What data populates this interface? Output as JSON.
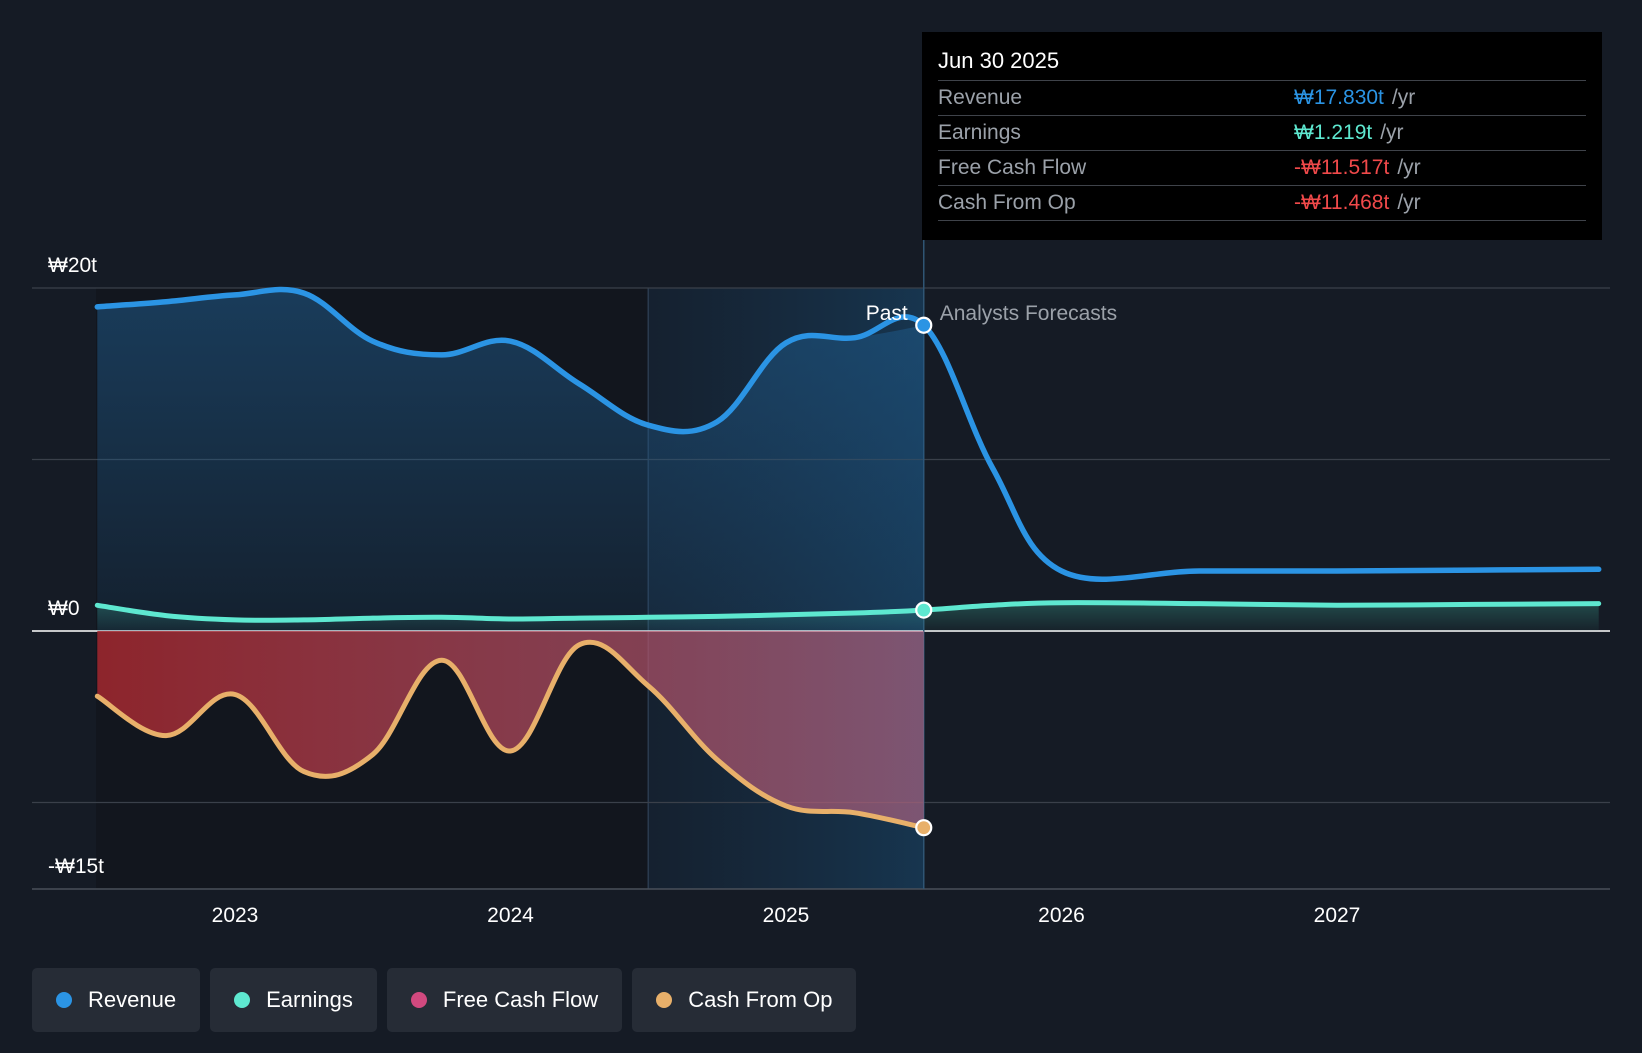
{
  "colors": {
    "background": "#151b25",
    "revenue": "#2b94e4",
    "earnings": "#5ee8d0",
    "free_cash_flow": "#d1497f",
    "cash_from_op": "#e8b06a",
    "negative": "#f0494a",
    "grid": "#3a404a"
  },
  "chart_data": {
    "type": "line",
    "title": "",
    "currency": "₩",
    "unit": "trillion KRW",
    "x_range": [
      2022.5,
      2027.95
    ],
    "ylim": [
      -15,
      20
    ],
    "y_tick_labels": [
      {
        "value": 20,
        "label": "₩20t"
      },
      {
        "value": 0,
        "label": "₩0"
      },
      {
        "value": -15,
        "label": "-₩15t"
      }
    ],
    "y_gridlines": [
      20,
      10,
      0,
      -10
    ],
    "x_ticks": [
      {
        "value": 2023,
        "label": "2023"
      },
      {
        "value": 2024,
        "label": "2024"
      },
      {
        "value": 2025,
        "label": "2025"
      },
      {
        "value": 2026,
        "label": "2026"
      },
      {
        "value": 2027,
        "label": "2027"
      }
    ],
    "past_cutoff": 2025.5,
    "shaded_region_start": 2024.5,
    "past_label": "Past",
    "forecast_label": "Analysts Forecasts",
    "series": [
      {
        "name": "Revenue",
        "key": "revenue",
        "x": [
          2022.5,
          2022.75,
          2023.0,
          2023.25,
          2023.5,
          2023.75,
          2024.0,
          2024.25,
          2024.5,
          2024.75,
          2025.0,
          2025.25,
          2025.5,
          2025.75,
          2026.0,
          2026.5,
          2027.0,
          2027.5,
          2027.95
        ],
        "y": [
          18.9,
          19.2,
          19.6,
          19.7,
          16.9,
          16.1,
          16.9,
          14.4,
          12.0,
          12.2,
          16.8,
          17.1,
          17.83,
          9.5,
          3.5,
          3.5,
          3.5,
          3.55,
          3.6
        ]
      },
      {
        "name": "Earnings",
        "key": "earnings",
        "x": [
          2022.5,
          2022.75,
          2023.0,
          2023.25,
          2023.5,
          2023.75,
          2024.0,
          2024.25,
          2024.5,
          2024.75,
          2025.0,
          2025.25,
          2025.5,
          2025.75,
          2026.0,
          2026.5,
          2027.0,
          2027.5,
          2027.95
        ],
        "y": [
          1.5,
          0.9,
          0.65,
          0.65,
          0.75,
          0.8,
          0.7,
          0.75,
          0.8,
          0.85,
          0.95,
          1.05,
          1.219,
          1.5,
          1.65,
          1.6,
          1.5,
          1.55,
          1.6
        ]
      },
      {
        "name": "Free Cash Flow",
        "key": "free_cash_flow",
        "x": [],
        "y": []
      },
      {
        "name": "Cash From Op",
        "key": "cash_from_op",
        "x": [
          2022.5,
          2022.75,
          2023.0,
          2023.25,
          2023.5,
          2023.75,
          2024.0,
          2024.25,
          2024.5,
          2024.75,
          2025.0,
          2025.25,
          2025.5
        ],
        "y": [
          -3.8,
          -6.1,
          -3.7,
          -8.2,
          -7.2,
          -1.7,
          -7.0,
          -0.8,
          -3.2,
          -7.5,
          -10.2,
          -10.6,
          -11.468
        ]
      }
    ]
  },
  "tooltip": {
    "date": "Jun 30 2025",
    "rows": [
      {
        "label": "Revenue",
        "value": "₩17.830t",
        "unit": "/yr",
        "color_key": "revenue"
      },
      {
        "label": "Earnings",
        "value": "₩1.219t",
        "unit": "/yr",
        "color_key": "earnings"
      },
      {
        "label": "Free Cash Flow",
        "value": "-₩11.517t",
        "unit": "/yr",
        "color_key": "negative"
      },
      {
        "label": "Cash From Op",
        "value": "-₩11.468t",
        "unit": "/yr",
        "color_key": "negative"
      }
    ]
  },
  "legend": [
    {
      "label": "Revenue",
      "color_key": "revenue"
    },
    {
      "label": "Earnings",
      "color_key": "earnings"
    },
    {
      "label": "Free Cash Flow",
      "color_key": "free_cash_flow"
    },
    {
      "label": "Cash From Op",
      "color_key": "cash_from_op"
    }
  ]
}
